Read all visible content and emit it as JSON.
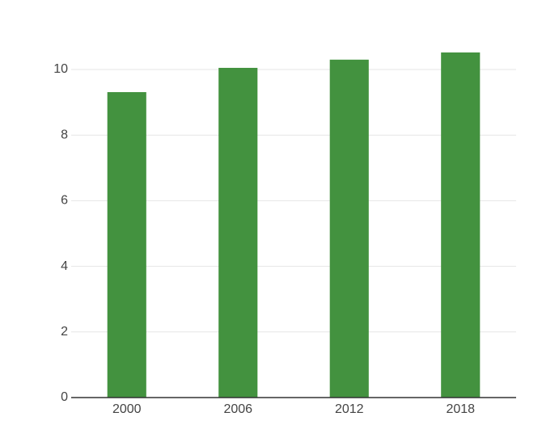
{
  "chart_data": {
    "type": "bar",
    "categories": [
      "2000",
      "2006",
      "2012",
      "2018"
    ],
    "values": [
      9.31,
      10.05,
      10.3,
      10.52
    ],
    "color": "#43923f",
    "ylim": [
      0,
      11
    ],
    "yticks": [
      0,
      2,
      4,
      6,
      8,
      10
    ],
    "grid": true
  }
}
